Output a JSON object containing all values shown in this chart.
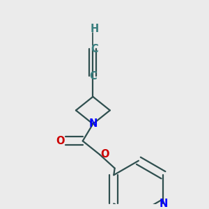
{
  "bg_color": "#ebebeb",
  "bond_color": "#2f4f4f",
  "N_color": "#0000ff",
  "O_color": "#cc0000",
  "C_color": "#3a7f7f",
  "H_color": "#3a7f7f",
  "line_width": 1.6,
  "dbo": 0.012,
  "font_size": 10.5,
  "fig_size": [
    3.0,
    3.0
  ],
  "dpi": 100,
  "xlim": [
    0,
    300
  ],
  "ylim": [
    0,
    300
  ]
}
